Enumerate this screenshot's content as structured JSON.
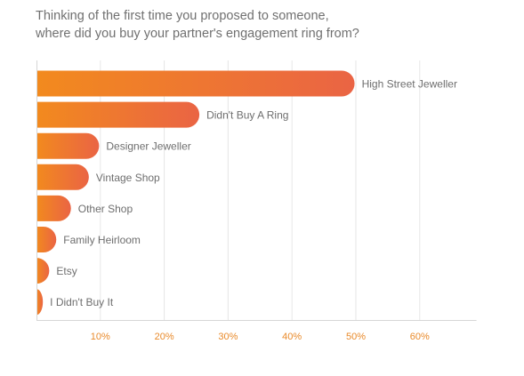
{
  "title": {
    "line1": "Thinking of the first time you proposed to someone,",
    "line2": "where did you buy your partner's engagement ring from?"
  },
  "colors": {
    "bar_start": "#F28A1E",
    "bar_end": "#EA6444",
    "tick_label": "#E98A2A",
    "category_label": "#6E6E6E",
    "grid": "#E6E6E6",
    "axis": "#D6D6D6"
  },
  "chart_data": {
    "type": "bar",
    "orientation": "horizontal",
    "categories": [
      "High Street Jeweller",
      "Didn't Buy A Ring",
      "Designer Jeweller",
      "Vintage Shop",
      "Other Shop",
      "Family Heirloom",
      "Etsy",
      "I Didn't Buy It"
    ],
    "values": [
      49.8,
      25.5,
      9.8,
      8.2,
      5.4,
      3.1,
      2.0,
      1.0
    ],
    "unit": "%",
    "xlim": [
      0,
      70
    ],
    "xticks": [
      10,
      20,
      30,
      40,
      50,
      60
    ],
    "xtick_labels": [
      "10%",
      "20%",
      "30%",
      "40%",
      "50%",
      "60%"
    ],
    "grid": true,
    "legend": "none"
  }
}
